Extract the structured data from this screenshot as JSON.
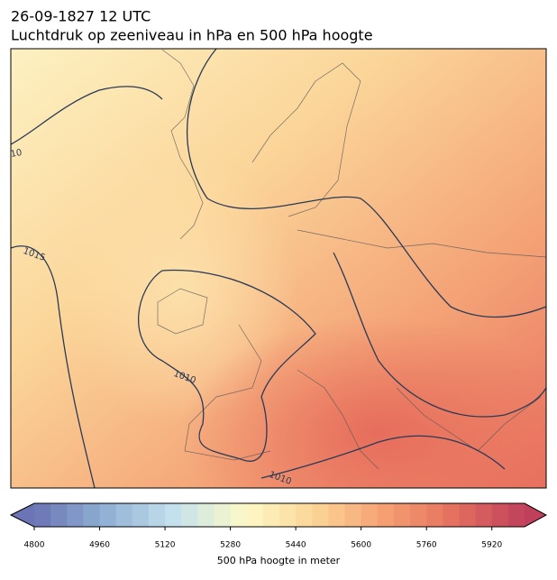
{
  "header": {
    "line1": "26-09-1827 12 UTC",
    "line2": "Luchtdruk op zeeniveau in hPa en 500 hPa hoogte"
  },
  "map": {
    "contour_labels": [
      "10",
      "1015",
      "1010",
      "1010"
    ]
  },
  "colorbar": {
    "lim": [
      4800,
      6000
    ],
    "step": 40,
    "ticks": [
      4800,
      4960,
      5120,
      5280,
      5440,
      5600,
      5760,
      5920
    ],
    "cmap": [
      "#6b74b5",
      "#8fb0d4",
      "#c4e1ec",
      "#fdf9c8",
      "#fcd596",
      "#f5a073",
      "#e4705f",
      "#c0405c"
    ],
    "label": "500 hPa hoogte in meter"
  }
}
